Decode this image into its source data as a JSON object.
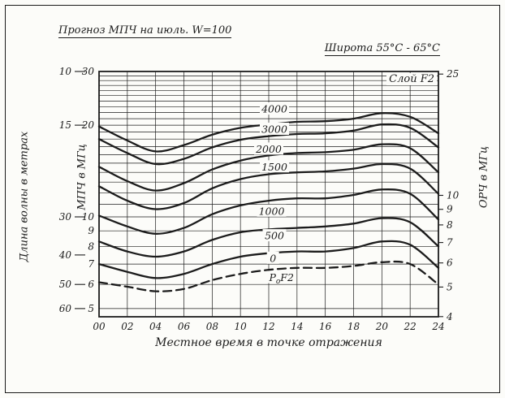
{
  "page": {
    "title": "Прогноз МПЧ на июль. W=100",
    "latitude_note": "Широта 55°С - 65°С",
    "layer_note": "Слой F2"
  },
  "chart_data": {
    "type": "line",
    "title": "Прогноз МПЧ на июль. W=100",
    "subtitle": "Широта 55°С - 65°С, Слой F2",
    "xlabel": "Местное время в точке отражения",
    "ylabel_wavelength": "Длина волны в метрах",
    "ylabel_muf": "МПЧ в МГц",
    "ylabel_owf": "ОРЧ в МГц",
    "y_scale": "log",
    "grid": true,
    "muf_range": [
      4.7,
      30
    ],
    "owf_to_muf_ratio": 0.85,
    "x_hours": [
      0,
      2,
      4,
      6,
      8,
      10,
      12,
      14,
      16,
      18,
      20,
      22,
      24
    ],
    "x_tick_labels": [
      "00",
      "02",
      "04",
      "06",
      "08",
      "10",
      "12",
      "14",
      "16",
      "18",
      "20",
      "22",
      "24"
    ],
    "muf_tick_labels": [
      30,
      20,
      10,
      9,
      8,
      7,
      6,
      5
    ],
    "owf_tick_labels": [
      25,
      10,
      9,
      8,
      7,
      6,
      5,
      4
    ],
    "wavelength_ticks": [
      {
        "label": "10",
        "freq": 30
      },
      {
        "label": "15",
        "freq": 20
      },
      {
        "label": "30",
        "freq": 10
      },
      {
        "label": "40",
        "freq": 7.5
      },
      {
        "label": "50",
        "freq": 6
      },
      {
        "label": "60",
        "freq": 5
      }
    ],
    "grid_freqs": [
      5,
      6,
      7,
      8,
      9,
      10,
      11,
      12,
      13,
      14,
      15,
      16,
      17,
      18,
      19,
      20,
      21,
      22,
      23,
      24,
      25,
      26,
      27,
      28,
      29,
      30
    ],
    "series": [
      {
        "name": "4000",
        "dashed": false,
        "values": [
          19.8,
          17.8,
          16.4,
          17.2,
          18.6,
          19.6,
          20.1,
          20.5,
          20.6,
          21.0,
          21.9,
          21.3,
          18.8
        ]
      },
      {
        "name": "3000",
        "dashed": false,
        "values": [
          18.0,
          16.2,
          14.9,
          15.5,
          16.9,
          17.9,
          18.4,
          18.7,
          18.8,
          19.2,
          20.1,
          19.6,
          16.9
        ]
      },
      {
        "name": "2000",
        "dashed": false,
        "values": [
          14.6,
          13.1,
          12.2,
          12.9,
          14.3,
          15.3,
          15.9,
          16.2,
          16.3,
          16.6,
          17.3,
          16.8,
          14.0
        ]
      },
      {
        "name": "1500",
        "dashed": false,
        "values": [
          12.6,
          11.3,
          10.6,
          11.1,
          12.4,
          13.3,
          13.8,
          14.0,
          14.1,
          14.4,
          14.9,
          14.4,
          11.9
        ]
      },
      {
        "name": "1000",
        "dashed": false,
        "values": [
          10.1,
          9.3,
          8.8,
          9.2,
          10.2,
          10.9,
          11.3,
          11.5,
          11.5,
          11.8,
          12.3,
          11.9,
          9.8
        ]
      },
      {
        "name": "500",
        "dashed": false,
        "values": [
          8.3,
          7.7,
          7.4,
          7.7,
          8.4,
          8.9,
          9.1,
          9.2,
          9.3,
          9.5,
          9.9,
          9.6,
          8.0
        ]
      },
      {
        "name": "0",
        "dashed": false,
        "values": [
          7.0,
          6.6,
          6.3,
          6.5,
          7.0,
          7.4,
          7.6,
          7.7,
          7.7,
          7.9,
          8.3,
          8.1,
          6.8
        ]
      },
      {
        "name": "PoF2",
        "dashed": true,
        "values": [
          6.1,
          5.9,
          5.7,
          5.8,
          6.2,
          6.5,
          6.7,
          6.8,
          6.8,
          6.9,
          7.1,
          7.0,
          6.0
        ]
      }
    ],
    "curve_labels": [
      {
        "text": "4000",
        "hour": 12.4,
        "freq": 22.6
      },
      {
        "text": "3000",
        "hour": 12.4,
        "freq": 19.4
      },
      {
        "text": "2000",
        "hour": 12.0,
        "freq": 16.7
      },
      {
        "text": "1500",
        "hour": 12.4,
        "freq": 14.6
      },
      {
        "text": "1000",
        "hour": 12.2,
        "freq": 10.45
      },
      {
        "text": "500",
        "hour": 12.4,
        "freq": 8.68
      },
      {
        "text": "0",
        "hour": 12.3,
        "freq": 7.32
      },
      {
        "text": "PoF2",
        "parts": [
          [
            "P",
            false
          ],
          [
            "o",
            true
          ],
          [
            "F2",
            false
          ]
        ],
        "hour": 12.9,
        "freq": 6.33
      }
    ],
    "ink_color": "#1c1c1c"
  }
}
